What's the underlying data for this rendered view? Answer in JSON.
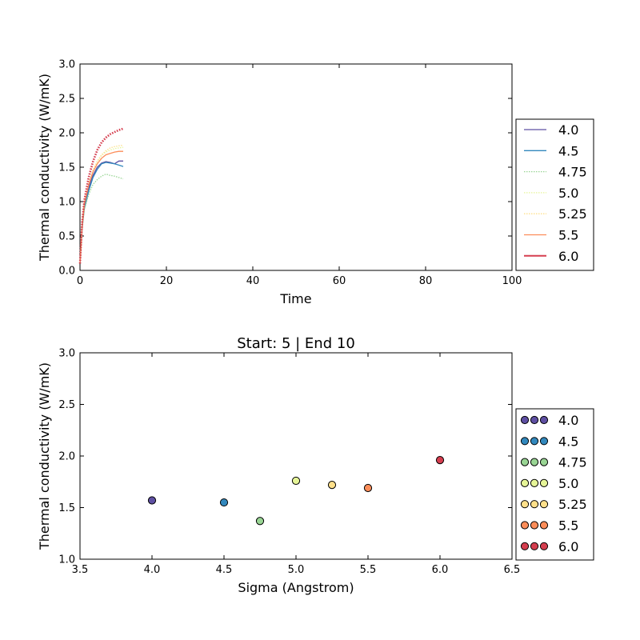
{
  "chart_data": [
    {
      "type": "line",
      "title": "",
      "xlabel": "Time",
      "ylabel": "Thermal conductivity (W/mK)",
      "xlim": [
        0,
        100
      ],
      "ylim": [
        0.0,
        3.0
      ],
      "xticks": [
        "0",
        "20",
        "40",
        "60",
        "80",
        "100"
      ],
      "yticks": [
        "0.0",
        "0.5",
        "1.0",
        "1.5",
        "2.0",
        "2.5",
        "3.0"
      ],
      "legend_position": "right-outside",
      "series": [
        {
          "name": "4.0",
          "color": "#5e4fa2",
          "style": "solid",
          "x": [
            0,
            0.5,
            1,
            2,
            3,
            4,
            5,
            6,
            7,
            8,
            9,
            10
          ],
          "y": [
            0.1,
            0.65,
            0.95,
            1.2,
            1.38,
            1.5,
            1.56,
            1.58,
            1.57,
            1.55,
            1.59,
            1.59
          ]
        },
        {
          "name": "4.5",
          "color": "#3288bd",
          "style": "solid",
          "x": [
            0,
            0.5,
            1,
            2,
            3,
            4,
            5,
            6,
            7,
            8,
            9,
            10
          ],
          "y": [
            0.1,
            0.62,
            0.9,
            1.15,
            1.35,
            1.47,
            1.55,
            1.57,
            1.56,
            1.55,
            1.53,
            1.51
          ]
        },
        {
          "name": "4.75",
          "color": "#99d594",
          "style": "dotted",
          "x": [
            0,
            0.5,
            1,
            2,
            3,
            4,
            5,
            6,
            7,
            8,
            9,
            10
          ],
          "y": [
            0.1,
            0.6,
            0.88,
            1.1,
            1.25,
            1.32,
            1.37,
            1.4,
            1.38,
            1.37,
            1.35,
            1.33
          ]
        },
        {
          "name": "5.0",
          "color": "#e6f598",
          "style": "dotted",
          "x": [
            0,
            0.5,
            1,
            2,
            3,
            4,
            5,
            6,
            7,
            8,
            9,
            10
          ],
          "y": [
            0.1,
            0.65,
            0.97,
            1.25,
            1.45,
            1.58,
            1.67,
            1.72,
            1.75,
            1.77,
            1.78,
            1.79
          ]
        },
        {
          "name": "5.25",
          "color": "#fee08b",
          "style": "dotted",
          "x": [
            0,
            0.5,
            1,
            2,
            3,
            4,
            5,
            6,
            7,
            8,
            9,
            10
          ],
          "y": [
            0.1,
            0.65,
            0.98,
            1.26,
            1.46,
            1.59,
            1.68,
            1.74,
            1.78,
            1.8,
            1.81,
            1.82
          ]
        },
        {
          "name": "5.5",
          "color": "#fc8d59",
          "style": "solid",
          "x": [
            0,
            0.5,
            1,
            2,
            3,
            4,
            5,
            6,
            7,
            8,
            9,
            10
          ],
          "y": [
            0.1,
            0.64,
            0.96,
            1.24,
            1.43,
            1.55,
            1.63,
            1.68,
            1.7,
            1.72,
            1.73,
            1.73
          ]
        },
        {
          "name": "6.0",
          "color": "#d53e4f",
          "style": "dots",
          "x": [
            0,
            0.5,
            1,
            2,
            3,
            4,
            5,
            6,
            7,
            8,
            9,
            10
          ],
          "y": [
            0.1,
            0.7,
            1.02,
            1.35,
            1.58,
            1.75,
            1.86,
            1.93,
            1.98,
            2.01,
            2.04,
            2.06
          ]
        }
      ]
    },
    {
      "type": "scatter",
      "title": "Start: 5 | End 10",
      "xlabel": "Sigma (Angstrom)",
      "ylabel": "Thermal conductivity (W/mK)",
      "xlim": [
        3.5,
        6.5
      ],
      "ylim": [
        1.0,
        3.0
      ],
      "xticks": [
        "3.5",
        "4.0",
        "4.5",
        "5.0",
        "5.5",
        "6.0",
        "6.5"
      ],
      "yticks": [
        "1.0",
        "1.5",
        "2.0",
        "2.5",
        "3.0"
      ],
      "legend_position": "right-outside",
      "series": [
        {
          "name": "4.0",
          "color": "#5e4fa2",
          "x": 4.0,
          "y": 1.57
        },
        {
          "name": "4.5",
          "color": "#3288bd",
          "x": 4.5,
          "y": 1.55
        },
        {
          "name": "4.75",
          "color": "#99d594",
          "x": 4.75,
          "y": 1.37
        },
        {
          "name": "5.0",
          "color": "#e6f598",
          "x": 5.0,
          "y": 1.76
        },
        {
          "name": "5.25",
          "color": "#fee08b",
          "x": 5.25,
          "y": 1.72
        },
        {
          "name": "5.5",
          "color": "#fc8d59",
          "x": 5.5,
          "y": 1.69
        },
        {
          "name": "6.0",
          "color": "#d53e4f",
          "x": 6.0,
          "y": 1.96
        }
      ]
    }
  ]
}
